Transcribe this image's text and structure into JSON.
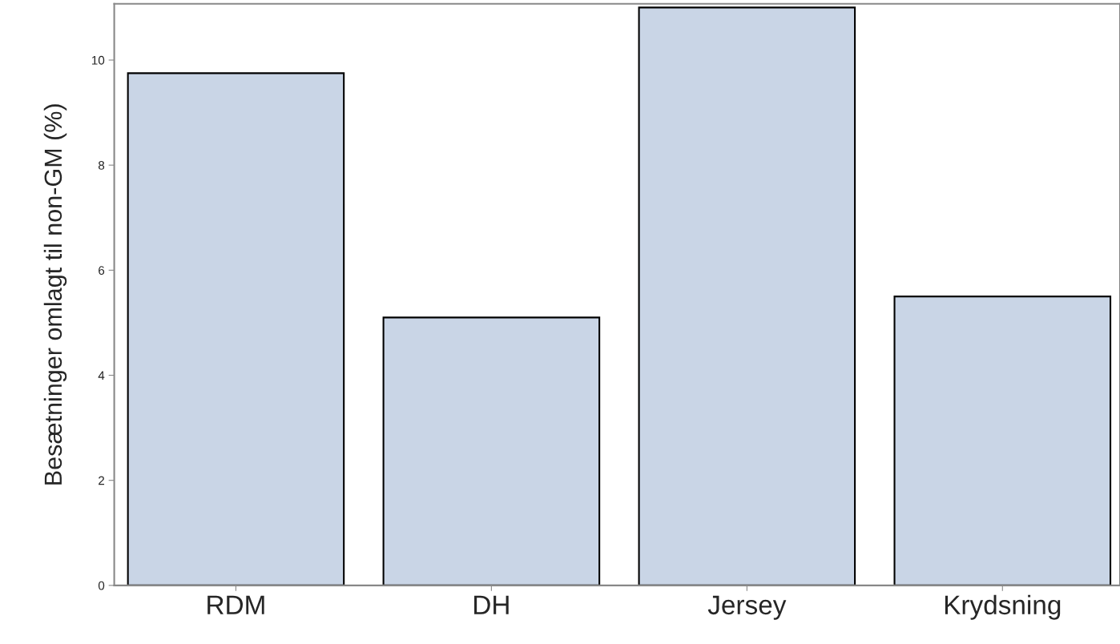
{
  "chart_data": {
    "type": "bar",
    "ylabel": "Besætninger omlagt til non-GM (%)",
    "categories": [
      "RDM",
      "DH",
      "Jersey",
      "Krydsning"
    ],
    "values": [
      9.75,
      5.1,
      11.0,
      5.5
    ],
    "color": "#c9d5e6",
    "ylim": [
      0,
      11.07
    ],
    "yticks": [
      0,
      2,
      4,
      6,
      8,
      10
    ],
    "grid": false,
    "legend": false
  }
}
